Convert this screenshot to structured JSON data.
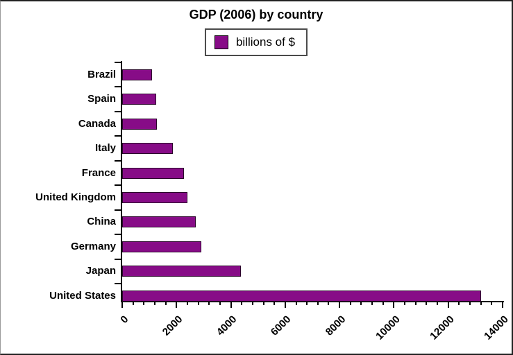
{
  "title": "GDP (2006) by country",
  "legend": {
    "label": "billions of $",
    "swatch_color": "#870c87"
  },
  "chart_data": {
    "type": "bar",
    "orientation": "horizontal",
    "title": "GDP (2006) by country",
    "categories": [
      "Brazil",
      "Spain",
      "Canada",
      "Italy",
      "France",
      "United Kingdom",
      "China",
      "Germany",
      "Japan",
      "United States"
    ],
    "values": [
      1100,
      1250,
      1280,
      1870,
      2270,
      2400,
      2700,
      2910,
      4370,
      13200
    ],
    "series_name": "billions of $",
    "xlabel": "",
    "ylabel": "",
    "xlim": [
      0,
      14000
    ],
    "x_major_ticks": [
      0,
      2000,
      4000,
      6000,
      8000,
      10000,
      12000,
      14000
    ],
    "x_minor_tick_interval": 400,
    "grid": false,
    "legend_position": "top-center",
    "bar_color": "#870c87",
    "bar_border_color": "#2a052a",
    "axis_color": "#000000",
    "background_color": "#ffffff"
  }
}
